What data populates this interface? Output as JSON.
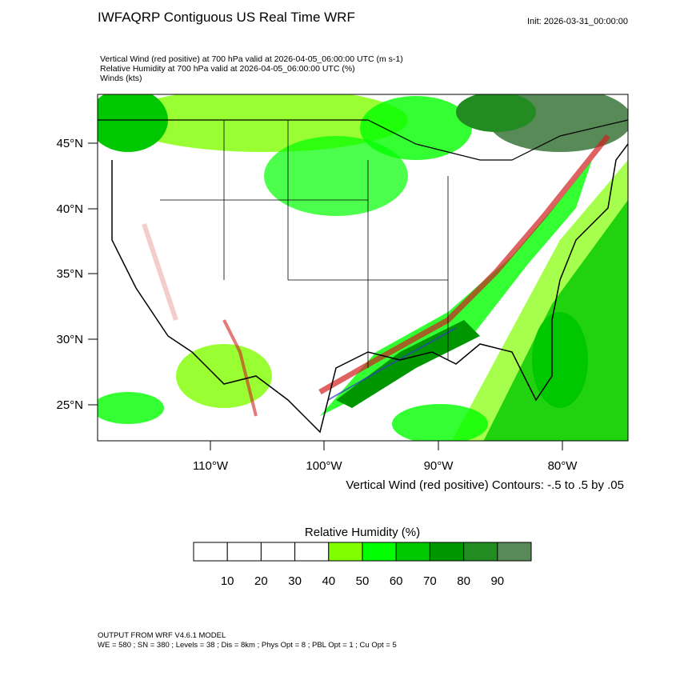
{
  "header": {
    "title": "IWFAQRP Contiguous US Real Time WRF",
    "init": "Init: 2026-03-31_00:00:00"
  },
  "subtitles": [
    "Vertical Wind (red positive) at 700 hPa valid at 2026-04-05_06:00:00 UTC   (m s-1)",
    "Relative Humidity at 700 hPa valid at 2026-04-05_06:00:00 UTC   (%)",
    "Winds   (kts)"
  ],
  "map": {
    "lat_labels": [
      "45°N",
      "40°N",
      "35°N",
      "30°N",
      "25°N"
    ],
    "lon_labels": [
      "110°W",
      "100°W",
      "90°W",
      "80°W"
    ],
    "contour_note": "Vertical Wind (red positive) Contours: -.5 to .5 by .05"
  },
  "colorbar": {
    "title": "Relative Humidity  (%)",
    "colors": [
      "#ffffff",
      "#ffffff",
      "#ffffff",
      "#ffffff",
      "#80ff00",
      "#00ff00",
      "#00c800",
      "#009600",
      "#228b22",
      "#578a57"
    ],
    "labels": [
      10,
      20,
      30,
      40,
      50,
      60,
      70,
      80,
      90
    ]
  },
  "footer": [
    "OUTPUT FROM WRF V4.6.1 MODEL",
    "WE = 580 ; SN = 380 ; Levels = 38 ; Dis = 8km ; Phys Opt = 8 ; PBL Opt = 1 ; Cu Opt = 5"
  ]
}
